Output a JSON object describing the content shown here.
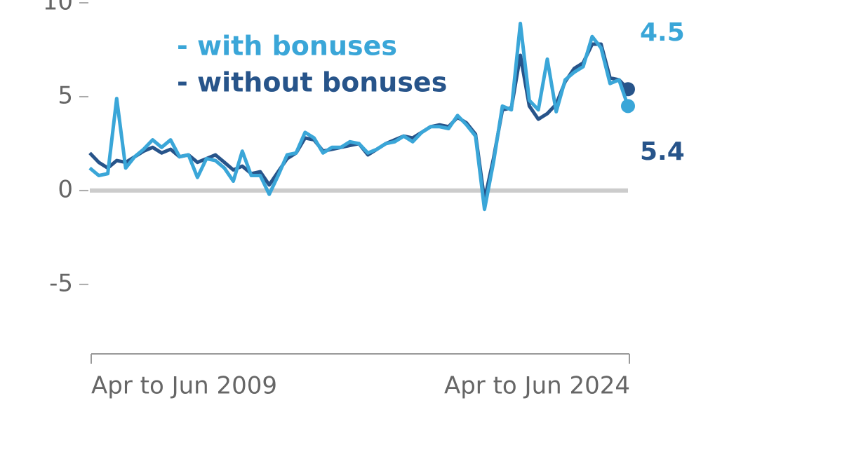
{
  "chart_data": {
    "type": "line",
    "categories": [
      "Apr to Jun 2009",
      null,
      null,
      null,
      null,
      null,
      null,
      null,
      null,
      null,
      null,
      null,
      null,
      null,
      null,
      null,
      null,
      null,
      null,
      null,
      null,
      null,
      null,
      null,
      null,
      null,
      null,
      null,
      null,
      null,
      null,
      null,
      null,
      null,
      null,
      null,
      null,
      null,
      null,
      null,
      null,
      null,
      null,
      null,
      null,
      null,
      null,
      null,
      null,
      null,
      null,
      null,
      null,
      null,
      null,
      null,
      null,
      null,
      null,
      null,
      "Apr to Jun 2024"
    ],
    "series": [
      {
        "name": "- with bonuses",
        "color": "#3aa6d8",
        "values": [
          1.2,
          0.8,
          0.9,
          4.9,
          1.2,
          1.8,
          2.2,
          2.7,
          2.3,
          2.7,
          1.8,
          1.9,
          0.7,
          1.7,
          1.6,
          1.2,
          0.5,
          2.1,
          0.8,
          0.8,
          -0.2,
          0.8,
          1.9,
          2.0,
          3.1,
          2.8,
          2.0,
          2.3,
          2.3,
          2.6,
          2.5,
          2.0,
          2.2,
          2.5,
          2.6,
          2.9,
          2.6,
          3.1,
          3.4,
          3.4,
          3.3,
          4.0,
          3.5,
          2.9,
          -1.0,
          1.5,
          4.5,
          4.3,
          8.9,
          4.8,
          4.3,
          7.0,
          4.2,
          5.9,
          6.3,
          6.6,
          8.2,
          7.6,
          5.7,
          5.9,
          4.5
        ]
      },
      {
        "name": "- without bonuses",
        "color": "#27548a",
        "values": [
          2.0,
          1.5,
          1.2,
          1.6,
          1.5,
          1.8,
          2.1,
          2.3,
          2.0,
          2.2,
          1.8,
          1.9,
          1.5,
          1.7,
          1.9,
          1.5,
          1.1,
          1.3,
          0.9,
          1.0,
          0.3,
          1.0,
          1.7,
          2.0,
          2.8,
          2.7,
          2.1,
          2.2,
          2.3,
          2.4,
          2.5,
          1.9,
          2.2,
          2.5,
          2.7,
          2.9,
          2.8,
          3.1,
          3.4,
          3.5,
          3.4,
          3.9,
          3.6,
          3.0,
          -0.5,
          1.7,
          4.3,
          4.4,
          7.2,
          4.5,
          3.8,
          4.1,
          4.6,
          5.8,
          6.5,
          6.8,
          7.8,
          7.8,
          6.0,
          5.9,
          5.4
        ]
      }
    ],
    "ylim": [
      -8.7,
      10.15
    ],
    "yticks": [
      10,
      5,
      0,
      -5
    ],
    "zero_line": true
  }
}
